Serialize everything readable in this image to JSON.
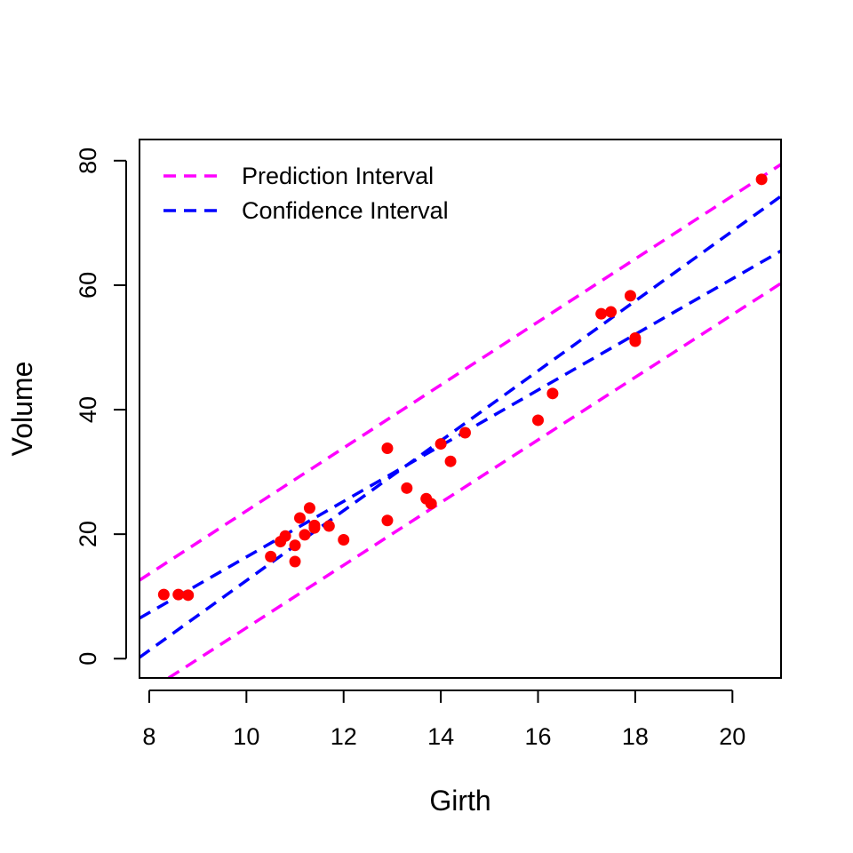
{
  "chart_data": {
    "type": "scatter",
    "title": "",
    "xlabel": "Girth",
    "ylabel": "Volume",
    "xlim": [
      7.8,
      21.0
    ],
    "ylim": [
      -3.1,
      83.4
    ],
    "grid": false,
    "x_ticks": [
      8,
      10,
      12,
      14,
      16,
      18,
      20
    ],
    "y_ticks": [
      0,
      20,
      40,
      60,
      80
    ],
    "x_tick_labels": [
      "8",
      "10",
      "12",
      "14",
      "16",
      "18",
      "20"
    ],
    "y_tick_labels": [
      "0",
      "20",
      "40",
      "60",
      "80"
    ],
    "legend": {
      "position": "top-left",
      "entries": [
        {
          "label": "Prediction Interval",
          "color": "#ff00ff",
          "style": "dashed"
        },
        {
          "label": "Confidence Interval",
          "color": "#0000ff",
          "style": "dashed"
        }
      ]
    },
    "points": {
      "color": "#ff0000",
      "x": [
        8.3,
        8.6,
        8.8,
        10.5,
        10.7,
        10.8,
        11.0,
        11.0,
        11.1,
        11.2,
        11.3,
        11.4,
        11.4,
        11.7,
        12.0,
        12.9,
        12.9,
        13.3,
        13.7,
        13.8,
        14.0,
        14.2,
        14.5,
        16.0,
        16.3,
        17.3,
        17.5,
        17.9,
        18.0,
        18.0,
        20.6
      ],
      "y": [
        10.3,
        10.3,
        10.2,
        16.4,
        18.8,
        19.7,
        15.6,
        18.2,
        22.6,
        19.9,
        24.2,
        21.0,
        21.4,
        21.3,
        19.1,
        22.2,
        33.8,
        27.4,
        25.7,
        24.9,
        34.5,
        31.7,
        36.3,
        38.3,
        42.6,
        55.4,
        55.7,
        58.3,
        51.5,
        51.0,
        77.0
      ]
    },
    "series": [
      {
        "name": "Prediction Interval",
        "color": "#ff00ff",
        "style": "dashed",
        "x": [
          7.8,
          21.0
        ],
        "y": [
          12.6,
          79.4
        ]
      },
      {
        "name": "Prediction Interval",
        "color": "#ff00ff",
        "style": "dashed",
        "x": [
          8.4,
          21.0
        ],
        "y": [
          -3.1,
          60.3
        ]
      },
      {
        "name": "Confidence Interval",
        "color": "#0000ff",
        "style": "dashed",
        "x": [
          7.8,
          21.0
        ],
        "y": [
          6.5,
          65.5
        ]
      },
      {
        "name": "Confidence Interval",
        "color": "#0000ff",
        "style": "dashed",
        "x": [
          7.8,
          21.0
        ],
        "y": [
          0.2,
          74.3
        ]
      }
    ]
  }
}
